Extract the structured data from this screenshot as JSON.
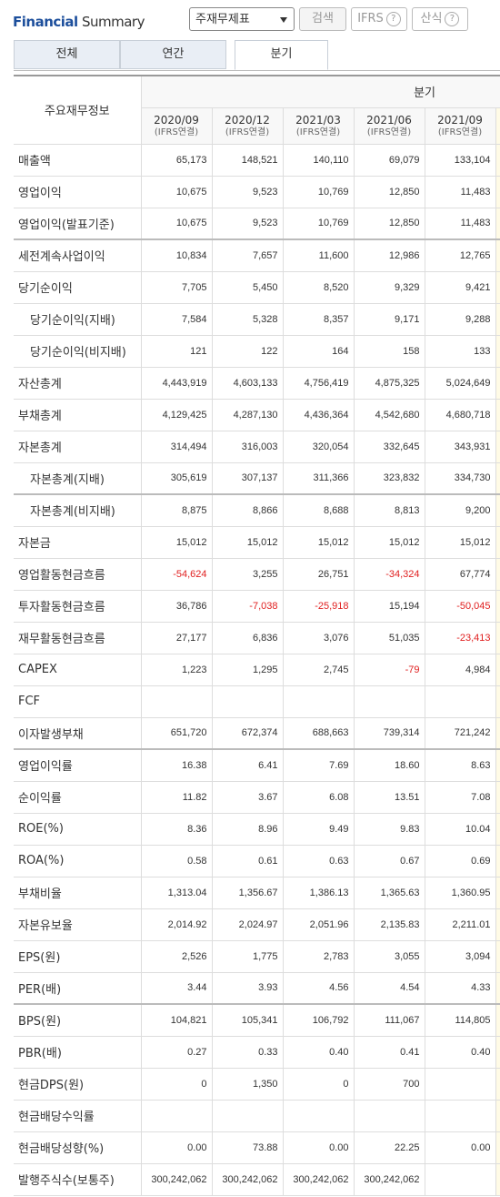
{
  "header": {
    "title_main": "Financial",
    "title_sub": "Summary",
    "select": "주재무제표",
    "buttons": [
      "검색",
      "IFRS",
      "산식"
    ]
  },
  "tabs": [
    "전체",
    "연간",
    "분기"
  ],
  "active_tab": 2,
  "table": {
    "corner": "주요재무정보",
    "group": "분기",
    "columns": [
      {
        "period": "2020/09",
        "basis": "(IFRS연결)"
      },
      {
        "period": "2020/12",
        "basis": "(IFRS연결)"
      },
      {
        "period": "2021/03",
        "basis": "(IFRS연결)"
      },
      {
        "period": "2021/06",
        "basis": "(IFRS연결)"
      },
      {
        "period": "2021/09",
        "basis": "(IFRS연결)"
      }
    ],
    "sections": [
      {
        "rows": [
          {
            "label": "매출액",
            "indent": false,
            "values": [
              "65,173",
              "148,521",
              "140,110",
              "69,079",
              "133,104"
            ]
          },
          {
            "label": "영업이익",
            "indent": false,
            "values": [
              "10,675",
              "9,523",
              "10,769",
              "12,850",
              "11,483"
            ]
          },
          {
            "label": "영업이익(발표기준)",
            "indent": false,
            "values": [
              "10,675",
              "9,523",
              "10,769",
              "12,850",
              "11,483"
            ]
          }
        ]
      },
      {
        "rows": [
          {
            "label": "세전계속사업이익",
            "indent": false,
            "values": [
              "10,834",
              "7,657",
              "11,600",
              "12,986",
              "12,765"
            ]
          },
          {
            "label": "당기순이익",
            "indent": false,
            "values": [
              "7,705",
              "5,450",
              "8,520",
              "9,329",
              "9,421"
            ]
          },
          {
            "label": "당기순이익(지배)",
            "indent": true,
            "values": [
              "7,584",
              "5,328",
              "8,357",
              "9,171",
              "9,288"
            ]
          },
          {
            "label": "당기순이익(비지배)",
            "indent": true,
            "values": [
              "121",
              "122",
              "164",
              "158",
              "133"
            ]
          },
          {
            "label": "자산총계",
            "indent": false,
            "values": [
              "4,443,919",
              "4,603,133",
              "4,756,419",
              "4,875,325",
              "5,024,649"
            ]
          },
          {
            "label": "부채총계",
            "indent": false,
            "values": [
              "4,129,425",
              "4,287,130",
              "4,436,364",
              "4,542,680",
              "4,680,718"
            ]
          },
          {
            "label": "자본총계",
            "indent": false,
            "values": [
              "314,494",
              "316,003",
              "320,054",
              "332,645",
              "343,931"
            ]
          },
          {
            "label": "자본총계(지배)",
            "indent": true,
            "values": [
              "305,619",
              "307,137",
              "311,366",
              "323,832",
              "334,730"
            ]
          }
        ]
      },
      {
        "rows": [
          {
            "label": "자본총계(비지배)",
            "indent": true,
            "values": [
              "8,875",
              "8,866",
              "8,688",
              "8,813",
              "9,200"
            ]
          },
          {
            "label": "자본금",
            "indent": false,
            "values": [
              "15,012",
              "15,012",
              "15,012",
              "15,012",
              "15,012"
            ]
          },
          {
            "label": "영업활동현금흐름",
            "indent": false,
            "values": [
              "-54,624",
              "3,255",
              "26,751",
              "-34,324",
              "67,774"
            ]
          },
          {
            "label": "투자활동현금흐름",
            "indent": false,
            "values": [
              "36,786",
              "-7,038",
              "-25,918",
              "15,194",
              "-50,045"
            ]
          },
          {
            "label": "재무활동현금흐름",
            "indent": false,
            "values": [
              "27,177",
              "6,836",
              "3,076",
              "51,035",
              "-23,413"
            ]
          },
          {
            "label": "CAPEX",
            "indent": false,
            "values": [
              "1,223",
              "1,295",
              "2,745",
              "-79",
              "4,984"
            ]
          },
          {
            "label": "FCF",
            "indent": false,
            "values": [
              null,
              null,
              null,
              null,
              null
            ]
          },
          {
            "label": "이자발생부채",
            "indent": false,
            "values": [
              "651,720",
              "672,374",
              "688,663",
              "739,314",
              "721,242"
            ]
          }
        ]
      },
      {
        "rows": [
          {
            "label": "영업이익률",
            "indent": false,
            "values": [
              "16.38",
              "6.41",
              "7.69",
              "18.60",
              "8.63"
            ]
          },
          {
            "label": "순이익률",
            "indent": false,
            "values": [
              "11.82",
              "3.67",
              "6.08",
              "13.51",
              "7.08"
            ]
          },
          {
            "label": "ROE(%)",
            "indent": false,
            "values": [
              "8.36",
              "8.96",
              "9.49",
              "9.83",
              "10.04"
            ]
          },
          {
            "label": "ROA(%)",
            "indent": false,
            "values": [
              "0.58",
              "0.61",
              "0.63",
              "0.67",
              "0.69"
            ]
          },
          {
            "label": "부채비율",
            "indent": false,
            "values": [
              "1,313.04",
              "1,356.67",
              "1,386.13",
              "1,365.63",
              "1,360.95"
            ]
          },
          {
            "label": "자본유보율",
            "indent": false,
            "values": [
              "2,014.92",
              "2,024.97",
              "2,051.96",
              "2,135.83",
              "2,211.01"
            ]
          },
          {
            "label": "EPS(원)",
            "indent": false,
            "values": [
              "2,526",
              "1,775",
              "2,783",
              "3,055",
              "3,094"
            ]
          },
          {
            "label": "PER(배)",
            "indent": false,
            "values": [
              "3.44",
              "3.93",
              "4.56",
              "4.54",
              "4.33"
            ]
          }
        ]
      },
      {
        "rows": [
          {
            "label": "BPS(원)",
            "indent": false,
            "values": [
              "104,821",
              "105,341",
              "106,792",
              "111,067",
              "114,805"
            ]
          },
          {
            "label": "PBR(배)",
            "indent": false,
            "values": [
              "0.27",
              "0.33",
              "0.40",
              "0.41",
              "0.40"
            ]
          },
          {
            "label": "현금DPS(원)",
            "indent": false,
            "values": [
              "0",
              "1,350",
              "0",
              "700",
              null
            ]
          },
          {
            "label": "현금배당수익률",
            "indent": false,
            "values": [
              null,
              null,
              null,
              null,
              null
            ]
          },
          {
            "label": "현금배당성향(%)",
            "indent": false,
            "values": [
              "0.00",
              "73.88",
              "0.00",
              "22.25",
              "0.00"
            ]
          },
          {
            "label": "발행주식수(보통주)",
            "indent": false,
            "values": [
              "300,242,062",
              "300,242,062",
              "300,242,062",
              "300,242,062",
              null
            ]
          }
        ]
      }
    ]
  }
}
